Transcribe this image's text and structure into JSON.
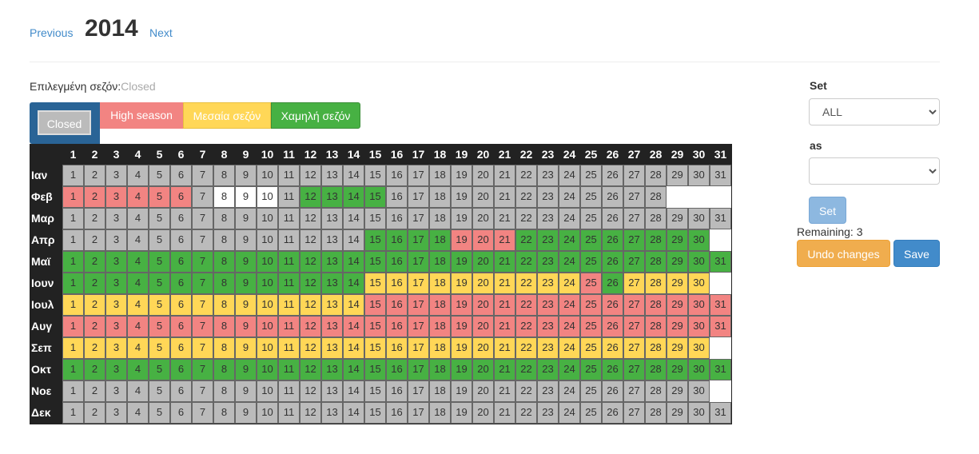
{
  "nav": {
    "prev_label": "Previous",
    "year": "2014",
    "next_label": "Next"
  },
  "selected": {
    "label": "Επιλεγμένη σεζόν:",
    "value": "Closed"
  },
  "seasons": {
    "closed": "Closed",
    "high": "High season",
    "mid": "Μεσαία σεζόν",
    "low": "Χαμηλή σεζόν"
  },
  "colors": {
    "grey": "#bbbbbb",
    "red": "#f28482",
    "yellow": "#ffd757",
    "green": "#47b143",
    "white": "#ffffff",
    "header": "#222222"
  },
  "calendar": {
    "months": [
      "Ιαν",
      "Φεβ",
      "Μαρ",
      "Απρ",
      "Μαϊ",
      "Ιουν",
      "Ιουλ",
      "Αυγ",
      "Σεπ",
      "Οκτ",
      "Νοε",
      "Δεκ"
    ],
    "days_in_month": [
      31,
      28,
      31,
      30,
      31,
      30,
      31,
      31,
      30,
      31,
      30,
      31
    ],
    "legend": {
      "G": "grey",
      "R": "red",
      "Y": "yellow",
      "N": "green",
      "W": "white"
    },
    "rows": [
      "GGGGGGGGGGGGGGGGGGGGGGGGGGGGGGG",
      "RRRRRRGWWWGNNNNGGGGGGGGGGGGG",
      "GGGGGGGGGGGGGGGGGGGGGGGGGGGGGGG",
      "GGGGGGGGGGGGGGNNNNRRRNNNNNNNNN",
      "NNNNNNNNNNNNNNNNNNNNNNNNNNNNNNN",
      "NNNNNNNNNNNNNNYYYYYYYYYYRNYYYY",
      "YYYYYYYYYYYYYYRRRRRRRRRRRRRRRRR",
      "RRRRRRRRRRRRRRRRRRRRRRRRRRRRRRR",
      "YYYYYYYYYYYYYYYYYYYYYYYYYYYYYY",
      "NNNNNNNNNNNNNNNNNNNNNNNNNNNNNNN",
      "GGGGGGGGGGGGGGGGGGGGGGGGGGGGGG",
      "GGGGGGGGGGGGGGGGGGGGGGGGGGGGGGG"
    ]
  },
  "side": {
    "set_label": "Set",
    "set_select_value": "ALL",
    "as_label": "as",
    "as_select_value": "",
    "set_button": "Set",
    "remaining": "Remaining: 3",
    "undo_button": "Undo changes",
    "save_button": "Save"
  }
}
